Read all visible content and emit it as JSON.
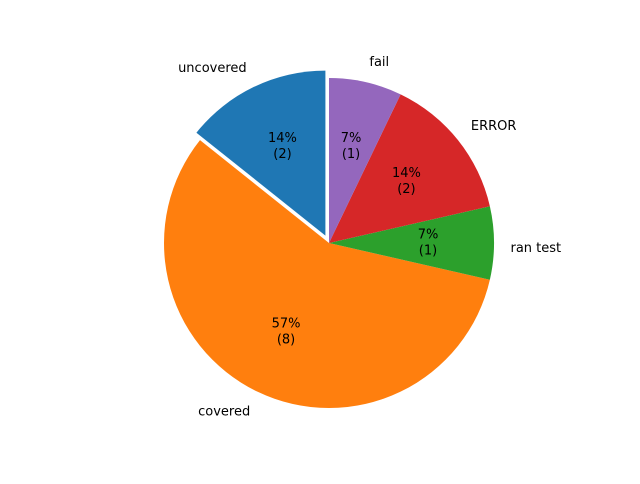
{
  "chart_data": {
    "type": "pie",
    "title": "",
    "start_angle_deg": 90,
    "direction": "counterclockwise",
    "slices": [
      {
        "label": "uncovered",
        "value": 2,
        "percent_label": "14%",
        "count_label": "(2)",
        "color": "#1f77b4",
        "exploded": true
      },
      {
        "label": "covered",
        "value": 8,
        "percent_label": "57%",
        "count_label": "(8)",
        "color": "#ff7f0e",
        "exploded": false
      },
      {
        "label": "ran test",
        "value": 1,
        "percent_label": "7%",
        "count_label": "(1)",
        "color": "#2ca02c",
        "exploded": false
      },
      {
        "label": "ERROR",
        "value": 2,
        "percent_label": "14%",
        "count_label": "(2)",
        "color": "#d62728",
        "exploded": false
      },
      {
        "label": "fail",
        "value": 1,
        "percent_label": "7%",
        "count_label": "(1)",
        "color": "#9467bd",
        "exploded": false
      }
    ]
  }
}
